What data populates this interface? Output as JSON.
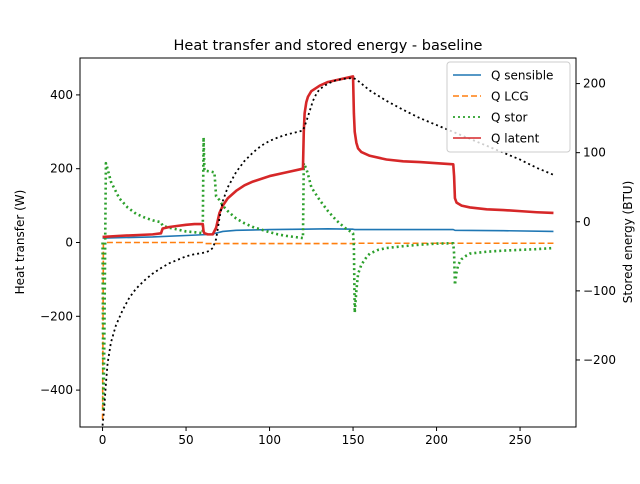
{
  "chart_data": {
    "type": "line",
    "title": "Heat transfer and stored energy - baseline",
    "xlabel": "",
    "ylabel": "Heat transfer (W)",
    "y2label": "Stored energy (BTU)",
    "xlim": [
      -13.5,
      283.5
    ],
    "ylim": [
      -500,
      500
    ],
    "y2lim": [
      -297,
      237
    ],
    "xticks": [
      0,
      50,
      100,
      150,
      200,
      250
    ],
    "yticks": [
      -400,
      -200,
      0,
      200,
      400
    ],
    "y2ticks": [
      -200,
      -100,
      0,
      100,
      200
    ],
    "legend_position": "top-right",
    "series": [
      {
        "name": "Q sensible",
        "axis": "left",
        "color": "#1f77b4",
        "style": "solid",
        "x": [
          0,
          30,
          55,
          65,
          72,
          80,
          100,
          120,
          135,
          150,
          151,
          170,
          200,
          210,
          211,
          240,
          270
        ],
        "y": [
          12,
          15,
          20,
          22,
          30,
          33,
          35,
          36,
          37,
          36,
          35,
          35,
          35,
          35,
          33,
          32,
          30
        ]
      },
      {
        "name": "Q LCG",
        "axis": "left",
        "color": "#ff7f0e",
        "style": "dashed",
        "x": [
          0,
          0.5,
          1,
          60,
          61,
          150,
          151,
          270
        ],
        "y": [
          -480,
          -5,
          0,
          0,
          -3,
          -3,
          -2,
          -2
        ]
      },
      {
        "name": "Q stor",
        "axis": "left",
        "color": "#2ca02c",
        "style": "dotted",
        "x": [
          0,
          0.5,
          1,
          2,
          3,
          5,
          10,
          15,
          20,
          25,
          30,
          35,
          36,
          40,
          45,
          50,
          55,
          60,
          60.5,
          61,
          65,
          67,
          68,
          70,
          72,
          75,
          80,
          85,
          90,
          95,
          100,
          105,
          110,
          115,
          120,
          120.5,
          121,
          122,
          123,
          125,
          130,
          135,
          140,
          145,
          150,
          150.5,
          151,
          152,
          153,
          155,
          158,
          160,
          165,
          170,
          180,
          190,
          200,
          210,
          210.5,
          211,
          212,
          213,
          215,
          218,
          220,
          230,
          240,
          250,
          260,
          270
        ],
        "y": [
          0,
          -450,
          -300,
          215,
          200,
          165,
          120,
          95,
          78,
          68,
          60,
          55,
          45,
          40,
          35,
          30,
          28,
          25,
          285,
          195,
          192,
          190,
          125,
          115,
          100,
          85,
          65,
          52,
          42,
          35,
          28,
          22,
          18,
          15,
          12,
          215,
          210,
          200,
          185,
          150,
          115,
          85,
          60,
          40,
          25,
          -10,
          -190,
          -130,
          -85,
          -60,
          -40,
          -30,
          -20,
          -15,
          -10,
          -6,
          -3,
          -2,
          -30,
          -115,
          -80,
          -60,
          -45,
          -35,
          -30,
          -25,
          -22,
          -20,
          -18,
          -15
        ]
      },
      {
        "name": "Q latent",
        "axis": "left",
        "color": "#d62728",
        "style": "solid",
        "x": [
          0,
          10,
          20,
          30,
          35,
          36,
          40,
          45,
          50,
          55,
          60,
          60.5,
          61,
          63,
          66,
          68,
          70,
          72,
          75,
          80,
          85,
          90,
          100,
          110,
          120,
          120.5,
          121,
          122,
          123,
          125,
          130,
          135,
          140,
          145,
          150,
          150.5,
          151,
          152,
          153,
          155,
          160,
          170,
          180,
          190,
          200,
          210,
          210.5,
          211,
          212,
          215,
          220,
          230,
          240,
          250,
          260,
          270
        ],
        "y": [
          15,
          18,
          20,
          22,
          25,
          38,
          42,
          45,
          48,
          50,
          50,
          30,
          25,
          22,
          22,
          40,
          80,
          100,
          120,
          140,
          155,
          165,
          180,
          190,
          200,
          300,
          350,
          380,
          395,
          410,
          425,
          435,
          440,
          445,
          450,
          350,
          300,
          270,
          255,
          245,
          235,
          225,
          220,
          218,
          215,
          212,
          180,
          120,
          108,
          100,
          95,
          90,
          88,
          85,
          82,
          80
        ]
      },
      {
        "name": "",
        "axis": "right",
        "color": "#000000",
        "style": "dotted",
        "x": [
          0,
          1,
          2,
          3,
          5,
          8,
          12,
          16,
          20,
          25,
          30,
          35,
          40,
          45,
          50,
          55,
          60,
          62,
          64,
          66,
          68,
          70,
          72,
          75,
          80,
          85,
          90,
          95,
          100,
          105,
          110,
          115,
          120,
          122,
          124,
          126,
          128,
          130,
          135,
          140,
          145,
          150,
          152,
          155,
          160,
          170,
          180,
          190,
          200,
          210,
          220,
          230,
          240,
          250,
          260,
          270
        ],
        "y": [
          -295,
          -270,
          -235,
          -205,
          -175,
          -150,
          -128,
          -110,
          -97,
          -85,
          -75,
          -67,
          -60,
          -55,
          -50,
          -47,
          -45,
          -44,
          -42,
          -38,
          -25,
          5,
          30,
          50,
          72,
          88,
          100,
          110,
          117,
          122,
          126,
          129,
          132,
          145,
          160,
          175,
          185,
          192,
          200,
          205,
          207,
          208,
          206,
          200,
          190,
          175,
          162,
          150,
          140,
          130,
          120,
          110,
          100,
          90,
          78,
          68
        ]
      }
    ]
  }
}
